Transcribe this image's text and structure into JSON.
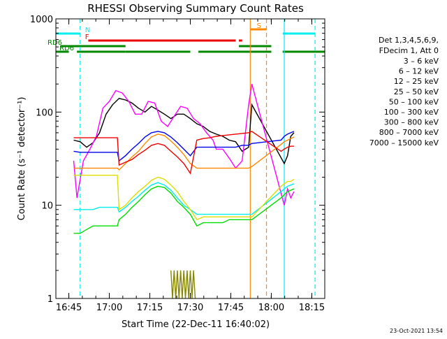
{
  "chart_data": {
    "type": "line",
    "title": "RHESSI Observing Summary Count Rates",
    "xlabel": "Start Time (22-Dec-11 16:40:02)",
    "ylabel": "Count Rate (s⁻¹ detector⁻¹)",
    "yscale": "log",
    "ylim": [
      1,
      1000
    ],
    "xlim_minutes": [
      16.67,
      18.33
    ],
    "x_ticks": [
      {
        "value": 16.75,
        "label": "16:45"
      },
      {
        "value": 17.0,
        "label": "17:00"
      },
      {
        "value": 17.25,
        "label": "17:15"
      },
      {
        "value": 17.5,
        "label": "17:30"
      },
      {
        "value": 17.75,
        "label": "17:45"
      },
      {
        "value": 18.0,
        "label": "18:00"
      },
      {
        "value": 18.25,
        "label": "18:15"
      }
    ],
    "y_ticks": [
      {
        "value": 1,
        "label": "1"
      },
      {
        "value": 10,
        "label": "10"
      },
      {
        "value": 100,
        "label": "100"
      },
      {
        "value": 1000,
        "label": "1000"
      }
    ],
    "legend": {
      "placement": "right",
      "header": [
        "Det 1,3,4,5,6,9,",
        "FDecim 1, Att 0"
      ],
      "entries": [
        {
          "label": "3 – 6 keV",
          "color": "#000000"
        },
        {
          "label": "6 – 12 keV",
          "color": "#ff00ff"
        },
        {
          "label": "12 – 25 keV",
          "color": "#00dd00"
        },
        {
          "label": "25 – 50 keV",
          "color": "#00eeee"
        },
        {
          "label": "50 – 100 keV",
          "color": "#dddd00"
        },
        {
          "label": "100 – 300 keV",
          "color": "#ee0000"
        },
        {
          "label": "300 – 800 keV",
          "color": "#0000ee"
        },
        {
          "label": "800 – 7000 keV",
          "color": "#ff8800"
        },
        {
          "label": "7000 – 15000 keV",
          "color": "#888800"
        }
      ]
    },
    "series": [
      {
        "color": "#000000",
        "x": [
          16.78,
          16.82,
          16.86,
          16.9,
          16.94,
          16.98,
          17.02,
          17.06,
          17.1,
          17.14,
          17.18,
          17.22,
          17.26,
          17.3,
          17.34,
          17.38,
          17.42,
          17.46,
          17.5,
          17.54,
          17.58,
          17.62,
          17.66,
          17.7,
          17.74,
          17.78,
          17.82,
          17.86,
          17.88,
          18.08,
          18.1,
          18.12,
          18.14
        ],
        "y": [
          50,
          48,
          42,
          47,
          60,
          95,
          120,
          140,
          135,
          125,
          110,
          100,
          115,
          105,
          95,
          85,
          95,
          95,
          85,
          75,
          70,
          62,
          58,
          55,
          50,
          48,
          38,
          42,
          120,
          28,
          34,
          55,
          60
        ]
      },
      {
        "color": "#ff00ff",
        "x": [
          16.78,
          16.8,
          16.84,
          16.88,
          16.92,
          16.96,
          17.0,
          17.04,
          17.08,
          17.12,
          17.16,
          17.2,
          17.24,
          17.28,
          17.32,
          17.36,
          17.4,
          17.44,
          17.48,
          17.52,
          17.56,
          17.6,
          17.64,
          17.66,
          17.7,
          17.74,
          17.78,
          17.82,
          17.86,
          17.88,
          18.08,
          18.1,
          18.12,
          18.14
        ],
        "y": [
          30,
          12,
          30,
          40,
          55,
          110,
          130,
          170,
          160,
          130,
          95,
          95,
          130,
          125,
          80,
          70,
          90,
          115,
          110,
          85,
          75,
          60,
          50,
          40,
          40,
          32,
          25,
          30,
          120,
          200,
          10,
          15,
          12,
          14
        ]
      },
      {
        "color": "#00dd00",
        "x": [
          16.78,
          16.82,
          16.86,
          16.9,
          16.94,
          16.98,
          17.02,
          17.05,
          17.06,
          17.1,
          17.14,
          17.18,
          17.22,
          17.26,
          17.3,
          17.34,
          17.38,
          17.42,
          17.46,
          17.5,
          17.54,
          17.58,
          17.62,
          17.66,
          17.7,
          17.74,
          17.78,
          17.82,
          17.86,
          17.88,
          18.06,
          18.08,
          18.1,
          18.12,
          18.14
        ],
        "y": [
          5,
          5,
          5.5,
          6,
          6,
          6,
          6,
          6,
          7,
          8,
          9.5,
          11,
          13,
          15,
          16,
          15.5,
          13.5,
          11,
          9.5,
          8,
          6,
          6.5,
          6.5,
          6.5,
          6.5,
          7,
          7,
          7,
          7,
          7,
          12,
          13,
          14,
          14.5,
          15
        ]
      },
      {
        "color": "#00eeee",
        "x": [
          16.78,
          16.82,
          16.86,
          16.9,
          16.94,
          16.98,
          17.02,
          17.05,
          17.06,
          17.1,
          17.14,
          17.18,
          17.22,
          17.26,
          17.3,
          17.34,
          17.38,
          17.42,
          17.46,
          17.5,
          17.54,
          17.58,
          17.62,
          17.66,
          17.7,
          17.74,
          17.78,
          17.82,
          17.86,
          17.88,
          18.06,
          18.08,
          18.1,
          18.12,
          18.14
        ],
        "y": [
          9,
          9,
          9,
          9,
          9.5,
          9.5,
          9.5,
          9.5,
          8.5,
          9.5,
          11,
          12.5,
          14.5,
          16.5,
          17.5,
          16.5,
          14.5,
          12,
          10,
          9,
          8,
          8,
          8,
          8,
          8,
          8,
          8,
          8,
          8,
          8,
          14,
          15,
          16,
          16.5,
          17
        ]
      },
      {
        "color": "#dddd00",
        "x": [
          16.78,
          16.82,
          16.86,
          16.9,
          16.94,
          16.98,
          17.02,
          17.05,
          17.06,
          17.1,
          17.14,
          17.18,
          17.22,
          17.26,
          17.3,
          17.34,
          17.38,
          17.42,
          17.46,
          17.5,
          17.54,
          17.58,
          17.62,
          17.66,
          17.7,
          17.74,
          17.78,
          17.82,
          17.86,
          17.88,
          18.06,
          18.08,
          18.1,
          18.12,
          18.14
        ],
        "y": [
          21,
          21,
          21,
          21,
          21,
          21,
          21,
          21,
          9,
          10,
          12,
          14,
          16,
          18.5,
          20,
          19,
          16.5,
          14,
          11,
          9,
          7,
          7.5,
          7.5,
          7.5,
          7.5,
          7.5,
          7.5,
          7.5,
          7.5,
          7.5,
          16,
          17,
          18,
          18,
          19
        ]
      },
      {
        "color": "#ff8800",
        "x": [
          16.78,
          16.82,
          16.86,
          16.9,
          16.94,
          16.98,
          17.02,
          17.05,
          17.06,
          17.1,
          17.14,
          17.18,
          17.22,
          17.26,
          17.3,
          17.34,
          17.38,
          17.42,
          17.46,
          17.5,
          17.54,
          17.58,
          17.62,
          17.66,
          17.7,
          17.74,
          17.78,
          17.82,
          17.86,
          17.88,
          18.06,
          18.08,
          18.1,
          18.12,
          18.14
        ],
        "y": [
          25,
          25,
          25,
          25,
          25,
          25,
          25,
          25,
          24,
          28,
          33,
          38,
          46,
          54,
          58,
          56,
          49,
          42,
          35,
          28,
          25,
          25,
          25,
          25,
          25,
          25,
          25,
          25,
          25,
          26,
          45,
          48,
          50,
          52,
          54
        ]
      },
      {
        "color": "#0000ee",
        "x": [
          16.78,
          16.82,
          16.86,
          16.9,
          16.94,
          16.98,
          17.02,
          17.05,
          17.06,
          17.1,
          17.14,
          17.18,
          17.22,
          17.26,
          17.3,
          17.34,
          17.38,
          17.42,
          17.46,
          17.5,
          17.54,
          17.58,
          17.62,
          17.66,
          17.7,
          17.74,
          17.78,
          17.82,
          17.86,
          17.88,
          18.06,
          18.08,
          18.1,
          18.12,
          18.14
        ],
        "y": [
          38,
          37,
          37,
          37,
          37,
          37,
          37,
          37,
          30,
          34,
          40,
          46,
          54,
          60,
          62,
          60,
          54,
          47,
          40,
          34,
          42,
          42,
          42,
          42,
          42,
          42,
          42,
          44,
          44,
          46,
          50,
          55,
          58,
          60,
          62
        ]
      },
      {
        "color": "#ee0000",
        "x": [
          16.78,
          16.82,
          16.86,
          16.9,
          16.94,
          16.98,
          17.02,
          17.05,
          17.06,
          17.1,
          17.14,
          17.18,
          17.22,
          17.26,
          17.3,
          17.34,
          17.38,
          17.42,
          17.46,
          17.5,
          17.54,
          17.58,
          17.62,
          17.66,
          17.7,
          17.74,
          17.78,
          17.82,
          17.86,
          17.88,
          18.06,
          18.08,
          18.1,
          18.12,
          18.14
        ],
        "y": [
          53,
          53,
          53,
          53,
          53,
          53,
          53,
          53,
          27,
          29,
          31,
          35,
          39,
          44,
          46,
          44,
          38,
          33,
          28,
          22,
          50,
          52,
          53,
          55,
          56,
          57,
          58,
          59,
          60,
          62,
          38,
          40,
          42,
          43,
          43
        ]
      },
      {
        "color": "#888800",
        "x": [
          17.38,
          17.39,
          17.4,
          17.41,
          17.42,
          17.43,
          17.44,
          17.45,
          17.46,
          17.47,
          17.48,
          17.49,
          17.5,
          17.51,
          17.52,
          17.53
        ],
        "y": [
          2,
          1,
          2,
          1,
          2,
          1,
          2,
          1,
          2,
          1,
          2,
          1,
          2,
          1,
          2,
          1
        ]
      }
    ],
    "flag_bars": [
      {
        "label": "F",
        "color": "#ee0000",
        "segments": [
          [
            16.87,
            17.78
          ],
          [
            17.8,
            17.82
          ]
        ]
      },
      {
        "label": "N",
        "color": "#00eeee",
        "segments": [
          [
            16.67,
            16.82
          ],
          [
            18.07,
            18.27
          ]
        ]
      },
      {
        "label": "S",
        "color": "#ff8800",
        "segments": [
          [
            17.87,
            17.97
          ]
        ]
      },
      {
        "label": "RD6",
        "color": "#008800",
        "segments": [
          [
            16.7,
            17.1
          ],
          [
            17.8,
            18.0
          ]
        ]
      },
      {
        "label": "RD6",
        "color": "#008800",
        "segments": [
          [
            16.67,
            16.75
          ],
          [
            16.8,
            17.1
          ],
          [
            17.1,
            17.5
          ],
          [
            17.55,
            18.0
          ],
          [
            18.07,
            18.33
          ]
        ]
      }
    ],
    "vertical_markers": [
      {
        "x": 16.82,
        "color": "#00eeee",
        "style": "dashed"
      },
      {
        "x": 17.87,
        "color": "#ff8800",
        "style": "solid"
      },
      {
        "x": 17.97,
        "color": "#ff8800",
        "style": "dashed"
      },
      {
        "x": 18.08,
        "color": "#00eeee",
        "style": "solid"
      },
      {
        "x": 18.27,
        "color": "#00eeee",
        "style": "dashed"
      }
    ]
  },
  "footer_timestamp": "23-Oct-2021 13:54"
}
